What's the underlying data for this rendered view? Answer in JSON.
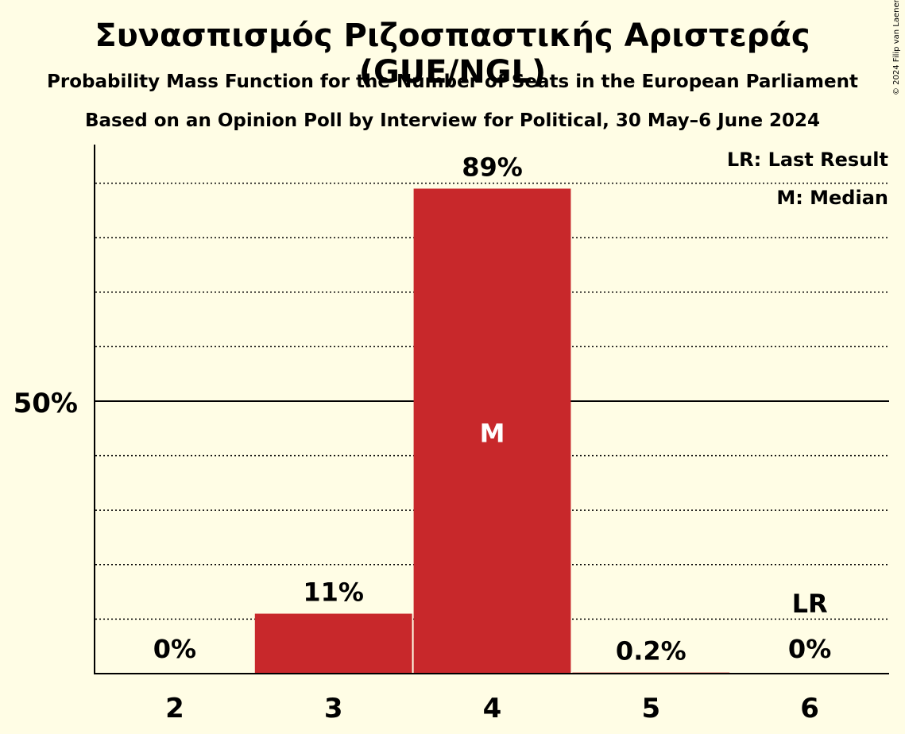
{
  "chart_data": {
    "type": "bar",
    "title": "Συνασπισμός Ριζοσπαστικής Αριστεράς (GUE/NGL)",
    "subtitle": "Probability Mass Function for the Number of Seats in the European Parliament",
    "subtitle2": "Based on an Opinion Poll by Interview for Political, 30 May–6 June 2024",
    "copyright": "© 2024 Filip van Laenen",
    "categories": [
      "2",
      "3",
      "4",
      "5",
      "6"
    ],
    "values": [
      0,
      11,
      89,
      0.2,
      0
    ],
    "value_labels": [
      "0%",
      "11%",
      "89%",
      "0.2%",
      "0%"
    ],
    "ylim": [
      0,
      100
    ],
    "y_tick_label": "50%",
    "y_tick_value": 50,
    "median_category": "4",
    "median_label": "M",
    "last_result_category": "6",
    "last_result_label": "LR",
    "legend": [
      "LR: Last Result",
      "M: Median"
    ],
    "legend_position": "top-right",
    "bar_color": "#C8282B",
    "background_color": "#FFFDE5",
    "grid": "dotted every 10%"
  }
}
